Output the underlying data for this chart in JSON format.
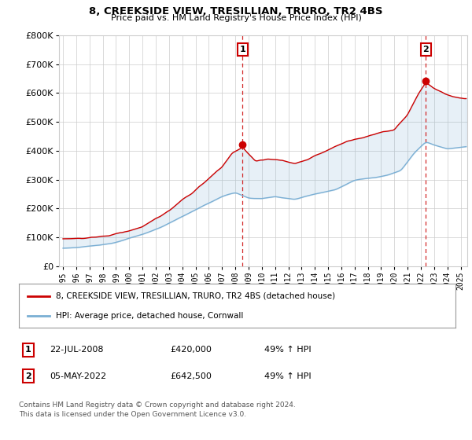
{
  "title": "8, CREEKSIDE VIEW, TRESILLIAN, TRURO, TR2 4BS",
  "subtitle": "Price paid vs. HM Land Registry's House Price Index (HPI)",
  "hpi_label": "HPI: Average price, detached house, Cornwall",
  "property_label": "8, CREEKSIDE VIEW, TRESILLIAN, TRURO, TR2 4BS (detached house)",
  "sale1_date": "22-JUL-2008",
  "sale1_price": 420000,
  "sale1_hpi": "49% ↑ HPI",
  "sale2_date": "05-MAY-2022",
  "sale2_price": 642500,
  "sale2_hpi": "49% ↑ HPI",
  "footnote1": "Contains HM Land Registry data © Crown copyright and database right 2024.",
  "footnote2": "This data is licensed under the Open Government Licence v3.0.",
  "property_color": "#cc0000",
  "hpi_color": "#7bafd4",
  "fill_color": "#ddeeff",
  "vline_color": "#cc0000",
  "grid_color": "#cccccc",
  "ylim": [
    0,
    800000
  ],
  "xlim_left": 1994.7,
  "xlim_right": 2025.5,
  "background_color": "#ffffff",
  "sale1_year": 2008.55,
  "sale2_year": 2022.37
}
